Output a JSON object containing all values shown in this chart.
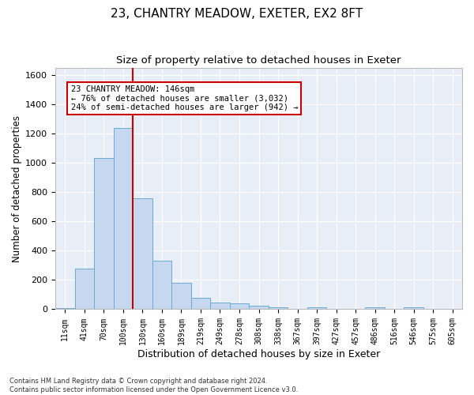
{
  "title1": "23, CHANTRY MEADOW, EXETER, EX2 8FT",
  "title2": "Size of property relative to detached houses in Exeter",
  "xlabel": "Distribution of detached houses by size in Exeter",
  "ylabel": "Number of detached properties",
  "bar_labels": [
    "11sqm",
    "41sqm",
    "70sqm",
    "100sqm",
    "130sqm",
    "160sqm",
    "189sqm",
    "219sqm",
    "249sqm",
    "278sqm",
    "308sqm",
    "338sqm",
    "367sqm",
    "397sqm",
    "427sqm",
    "457sqm",
    "486sqm",
    "516sqm",
    "546sqm",
    "575sqm",
    "605sqm"
  ],
  "bar_values": [
    10,
    280,
    1035,
    1240,
    755,
    330,
    180,
    80,
    45,
    38,
    22,
    14,
    0,
    15,
    0,
    0,
    12,
    0,
    12,
    0,
    0
  ],
  "bar_color": "#c5d8f0",
  "bar_edgecolor": "#6aaad4",
  "vline_color": "#cc0000",
  "ylim": [
    0,
    1650
  ],
  "yticks": [
    0,
    200,
    400,
    600,
    800,
    1000,
    1200,
    1400,
    1600
  ],
  "annotation_text": "23 CHANTRY MEADOW: 146sqm\n← 76% of detached houses are smaller (3,032)\n24% of semi-detached houses are larger (942) →",
  "annotation_box_color": "#ffffff",
  "annotation_box_edge": "#cc0000",
  "footnote": "Contains HM Land Registry data © Crown copyright and database right 2024.\nContains public sector information licensed under the Open Government Licence v3.0.",
  "fig_facecolor": "#ffffff",
  "background_color": "#e8eef8",
  "grid_color": "#ffffff",
  "title1_fontsize": 11,
  "title2_fontsize": 9.5,
  "xlabel_fontsize": 9,
  "ylabel_fontsize": 8.5,
  "footnote_fontsize": 6,
  "vline_bar_index": 4
}
